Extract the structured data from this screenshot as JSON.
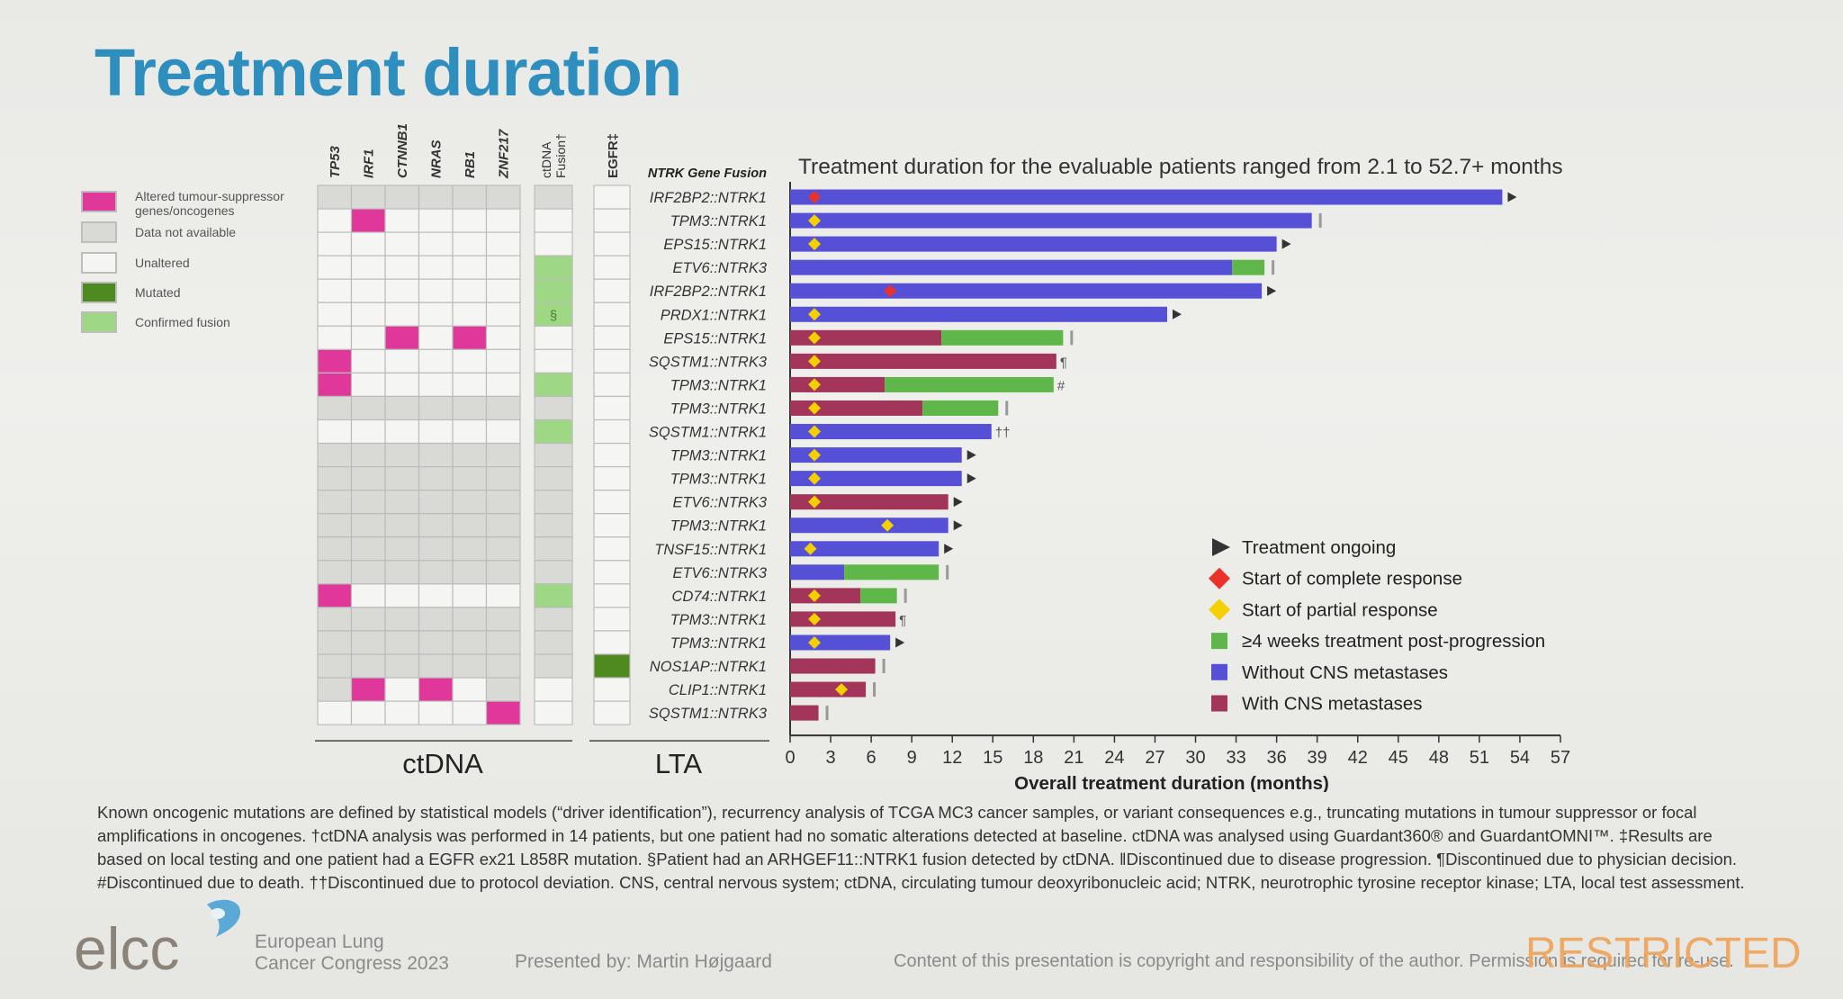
{
  "title": "Treatment duration",
  "legend_left": [
    {
      "label": "Altered tumour-suppressor genes/oncogenes",
      "color": "#e0379a"
    },
    {
      "label": "Data not available",
      "color": "#d9d9d6"
    },
    {
      "label": "Unaltered",
      "color": "#f5f5f3"
    },
    {
      "label": "Mutated",
      "color": "#4e8a1f"
    },
    {
      "label": "Confirmed fusion",
      "color": "#9fd884"
    }
  ],
  "heatmap": {
    "ctdna_genes": [
      "TP53",
      "IRF1",
      "CTNNB1",
      "NRAS",
      "RB1",
      "ZNF217"
    ],
    "ctdna_fusion_header": [
      "ctDNA",
      "Fusion†"
    ],
    "lta_header": "EGFR‡",
    "fusion_header": "NTRK Gene Fusion",
    "group_labels": {
      "ctdna": "ctDNA",
      "lta": "LTA"
    },
    "section_marker": "§",
    "codes": {
      "A": "altered",
      "N": "not available",
      "U": "unaltered",
      "M": "mutated",
      "F": "confirmed fusion",
      "S": "confirmed fusion §"
    },
    "rows": [
      {
        "fusion": "IRF2BP2::NTRK1",
        "ctdna": "NNNNNN",
        "cf": "N",
        "egfr": "U"
      },
      {
        "fusion": "TPM3::NTRK1",
        "ctdna": "UAUUUU",
        "cf": "U",
        "egfr": "U"
      },
      {
        "fusion": "EPS15::NTRK1",
        "ctdna": "UUUUUU",
        "cf": "U",
        "egfr": "U"
      },
      {
        "fusion": "ETV6::NTRK3",
        "ctdna": "UUUUUU",
        "cf": "F",
        "egfr": "U"
      },
      {
        "fusion": "IRF2BP2::NTRK1",
        "ctdna": "UUUUUU",
        "cf": "F",
        "egfr": "U"
      },
      {
        "fusion": "PRDX1::NTRK1",
        "ctdna": "UUUUUU",
        "cf": "S",
        "egfr": "U"
      },
      {
        "fusion": "EPS15::NTRK1",
        "ctdna": "UUAUAU",
        "cf": "U",
        "egfr": "U"
      },
      {
        "fusion": "SQSTM1::NTRK3",
        "ctdna": "AUUUUU",
        "cf": "U",
        "egfr": "U"
      },
      {
        "fusion": "TPM3::NTRK1",
        "ctdna": "AUUUUU",
        "cf": "F",
        "egfr": "U"
      },
      {
        "fusion": "TPM3::NTRK1",
        "ctdna": "NNNNNN",
        "cf": "N",
        "egfr": "U"
      },
      {
        "fusion": "SQSTM1::NTRK1",
        "ctdna": "UUUUUU",
        "cf": "F",
        "egfr": "U"
      },
      {
        "fusion": "TPM3::NTRK1",
        "ctdna": "NNNNNN",
        "cf": "N",
        "egfr": "U"
      },
      {
        "fusion": "TPM3::NTRK1",
        "ctdna": "NNNNNN",
        "cf": "N",
        "egfr": "U"
      },
      {
        "fusion": "ETV6::NTRK3",
        "ctdna": "NNNNNN",
        "cf": "N",
        "egfr": "U"
      },
      {
        "fusion": "TPM3::NTRK1",
        "ctdna": "NNNNNN",
        "cf": "N",
        "egfr": "U"
      },
      {
        "fusion": "TNSF15::NTRK1",
        "ctdna": "NNNNNN",
        "cf": "N",
        "egfr": "U"
      },
      {
        "fusion": "ETV6::NTRK3",
        "ctdna": "NNNNNN",
        "cf": "N",
        "egfr": "U"
      },
      {
        "fusion": "CD74::NTRK1",
        "ctdna": "AUUUUU",
        "cf": "F",
        "egfr": "U"
      },
      {
        "fusion": "TPM3::NTRK1",
        "ctdna": "NNNNNN",
        "cf": "N",
        "egfr": "U"
      },
      {
        "fusion": "TPM3::NTRK1",
        "ctdna": "NNNNNN",
        "cf": "N",
        "egfr": "U"
      },
      {
        "fusion": "NOS1AP::NTRK1",
        "ctdna": "NNNNNN",
        "cf": "N",
        "egfr": "M"
      },
      {
        "fusion": "CLIP1::NTRK1",
        "ctdna": "NAUAUN",
        "cf": "U",
        "egfr": "U"
      },
      {
        "fusion": "SQSTM1::NTRK3",
        "ctdna": "UUUUUA",
        "cf": "U",
        "egfr": "U"
      }
    ]
  },
  "chart_data": {
    "type": "bar",
    "orientation": "horizontal",
    "title": "Treatment duration for the evaluable patients ranged from 2.1 to 52.7+ months",
    "xlabel": "Overall treatment duration (months)",
    "ylabel": "NTRK Gene Fusion",
    "xlim": [
      0,
      57
    ],
    "xticks": [
      0,
      3,
      6,
      9,
      12,
      15,
      18,
      21,
      24,
      27,
      30,
      33,
      36,
      39,
      42,
      45,
      48,
      51,
      54,
      57
    ],
    "grid": false,
    "legend_position": "lower-right",
    "colors": {
      "no_cns": "#5550d6",
      "cns": "#a3355a",
      "post_progression": "#5fb74a",
      "complete_response": "#e8322a",
      "partial_response": "#f5d000",
      "ongoing": "#333333",
      "end_mark": "#999999"
    },
    "legend": [
      "Treatment ongoing",
      "Start of complete response",
      "Start of partial response",
      "≥4 weeks treatment post-progression",
      "Without CNS metastases",
      "With CNS metastases"
    ],
    "bars": [
      {
        "label": "IRF2BP2::NTRK1",
        "cns": false,
        "main": 52.7,
        "post": 0,
        "response": "complete",
        "response_at": 1.8,
        "end": "ongoing",
        "note": ""
      },
      {
        "label": "TPM3::NTRK1",
        "cns": false,
        "main": 38.6,
        "post": 0,
        "response": "partial",
        "response_at": 1.8,
        "end": "discontinued",
        "note": ""
      },
      {
        "label": "EPS15::NTRK1",
        "cns": false,
        "main": 36.0,
        "post": 0,
        "response": "partial",
        "response_at": 1.8,
        "end": "ongoing",
        "note": ""
      },
      {
        "label": "ETV6::NTRK3",
        "cns": false,
        "main": 32.7,
        "post": 2.4,
        "response": "",
        "response_at": 0,
        "end": "discontinued",
        "note": ""
      },
      {
        "label": "IRF2BP2::NTRK1",
        "cns": false,
        "main": 34.9,
        "post": 0,
        "response": "complete",
        "response_at": 7.4,
        "end": "ongoing",
        "note": ""
      },
      {
        "label": "PRDX1::NTRK1",
        "cns": false,
        "main": 27.9,
        "post": 0,
        "response": "partial",
        "response_at": 1.8,
        "end": "ongoing",
        "note": ""
      },
      {
        "label": "EPS15::NTRK1",
        "cns": true,
        "main": 11.2,
        "post": 9.0,
        "response": "partial",
        "response_at": 1.8,
        "end": "discontinued",
        "note": ""
      },
      {
        "label": "SQSTM1::NTRK3",
        "cns": true,
        "main": 19.7,
        "post": 0,
        "response": "partial",
        "response_at": 1.8,
        "end": "",
        "note": "¶"
      },
      {
        "label": "TPM3::NTRK1",
        "cns": true,
        "main": 7.0,
        "post": 12.5,
        "response": "partial",
        "response_at": 1.8,
        "end": "",
        "note": "#"
      },
      {
        "label": "TPM3::NTRK1",
        "cns": true,
        "main": 9.8,
        "post": 5.6,
        "response": "partial",
        "response_at": 1.8,
        "end": "discontinued",
        "note": ""
      },
      {
        "label": "SQSTM1::NTRK1",
        "cns": false,
        "main": 14.9,
        "post": 0,
        "response": "partial",
        "response_at": 1.8,
        "end": "",
        "note": "††"
      },
      {
        "label": "TPM3::NTRK1",
        "cns": false,
        "main": 12.7,
        "post": 0,
        "response": "partial",
        "response_at": 1.8,
        "end": "ongoing",
        "note": ""
      },
      {
        "label": "TPM3::NTRK1",
        "cns": false,
        "main": 12.7,
        "post": 0,
        "response": "partial",
        "response_at": 1.8,
        "end": "ongoing",
        "note": ""
      },
      {
        "label": "ETV6::NTRK3",
        "cns": true,
        "main": 11.7,
        "post": 0,
        "response": "partial",
        "response_at": 1.8,
        "end": "ongoing",
        "note": ""
      },
      {
        "label": "TPM3::NTRK1",
        "cns": false,
        "main": 11.7,
        "post": 0,
        "response": "partial",
        "response_at": 7.2,
        "end": "ongoing",
        "note": ""
      },
      {
        "label": "TNSF15::NTRK1",
        "cns": false,
        "main": 11.0,
        "post": 0,
        "response": "partial",
        "response_at": 1.5,
        "end": "ongoing",
        "note": ""
      },
      {
        "label": "ETV6::NTRK3",
        "cns": false,
        "main": 4.0,
        "post": 7.0,
        "response": "",
        "response_at": 0,
        "end": "discontinued",
        "note": ""
      },
      {
        "label": "CD74::NTRK1",
        "cns": true,
        "main": 5.2,
        "post": 2.7,
        "response": "partial",
        "response_at": 1.8,
        "end": "discontinued",
        "note": ""
      },
      {
        "label": "TPM3::NTRK1",
        "cns": true,
        "main": 7.8,
        "post": 0,
        "response": "partial",
        "response_at": 1.8,
        "end": "",
        "note": "¶"
      },
      {
        "label": "TPM3::NTRK1",
        "cns": false,
        "main": 7.4,
        "post": 0,
        "response": "partial",
        "response_at": 1.8,
        "end": "ongoing",
        "note": ""
      },
      {
        "label": "NOS1AP::NTRK1",
        "cns": true,
        "main": 6.3,
        "post": 0,
        "response": "",
        "response_at": 0,
        "end": "discontinued",
        "note": ""
      },
      {
        "label": "CLIP1::NTRK1",
        "cns": true,
        "main": 5.6,
        "post": 0,
        "response": "partial",
        "response_at": 3.8,
        "end": "discontinued",
        "note": ""
      },
      {
        "label": "SQSTM1::NTRK3",
        "cns": true,
        "main": 2.1,
        "post": 0,
        "response": "",
        "response_at": 0,
        "end": "discontinued",
        "note": ""
      }
    ]
  },
  "footnote_lines": [
    "Known oncogenic mutations are defined by statistical models (“driver identification”), recurrency analysis of TCGA MC3 cancer samples, or variant consequences e.g., truncating mutations in tumour suppressor or focal",
    "amplifications in oncogenes. †ctDNA analysis was performed in 14 patients, but one patient had no somatic alterations detected at baseline. ctDNA was analysed using Guardant360® and GuardantOMNI™. ‡Results are",
    "based on local testing and one patient had a EGFR ex21 L858R mutation. §Patient had an ARHGEF11::NTRK1 fusion detected by ctDNA. ‖Discontinued due to disease progression. ¶Discontinued due to physician decision.",
    "#Discontinued due to death. ††Discontinued due to protocol deviation. CNS, central nervous system; ctDNA, circulating tumour deoxyribonucleic acid; NTRK, neurotrophic tyrosine receptor kinase; LTA, local test assessment."
  ],
  "footer": {
    "logo_text": "elcc",
    "congress_line1": "European Lung",
    "congress_line2": "Cancer Congress 2023",
    "presenter": "Presented by: Martin Højgaard",
    "copyright": "Content of this presentation is copyright and responsibility of the author. Permission is required for re-use.",
    "watermark": "RESTRICTED"
  }
}
